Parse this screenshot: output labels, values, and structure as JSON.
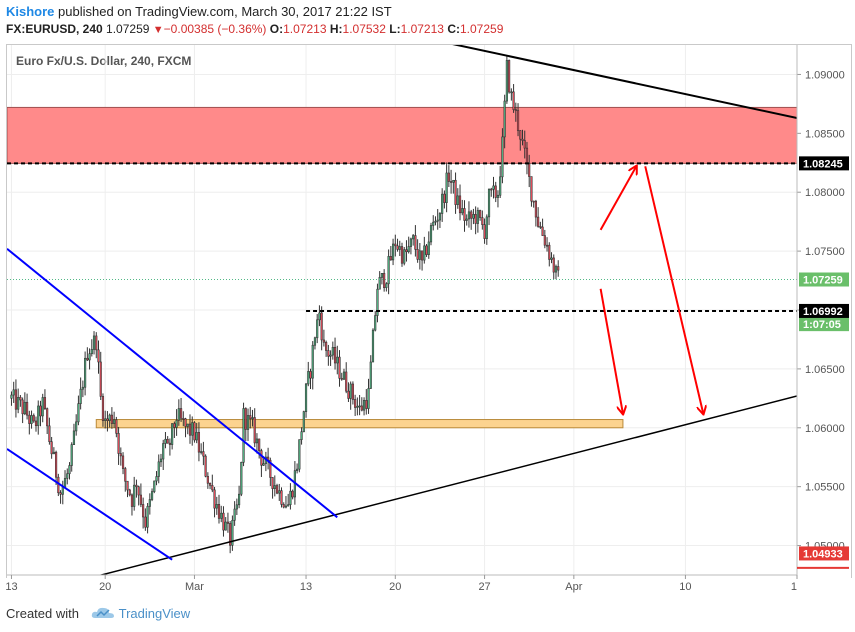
{
  "header": {
    "author": "Kishore",
    "published_text": "published on TradingView.com, March 30, 2017 21:22 IST"
  },
  "ohlc": {
    "symbol": "FX:EURUSD, 240",
    "price": "1.07259",
    "change_icon": "down-triangle-icon",
    "change": "−0.00385 (−0.36%)",
    "o_label": "O:",
    "o_value": "1.07213",
    "h_label": "H:",
    "h_value": "1.07532",
    "l_label": "L:",
    "l_value": "1.07213",
    "c_label": "C:",
    "c_value": "1.07259"
  },
  "footer": {
    "created_with": "Created with",
    "brand": "TradingView",
    "brand_icon": "tradingview-cloud-icon"
  },
  "chart_data": {
    "type": "candlestick",
    "title": "Euro Fx/U.S. Dollar, 240, FXCM",
    "ylim": [
      1.0475,
      1.0925
    ],
    "y_ticks": [
      "1.09000",
      "1.08500",
      "1.08000",
      "1.07500",
      "1.07000",
      "1.06500",
      "1.06000",
      "1.05500",
      "1.05000"
    ],
    "x_ticks": [
      {
        "label": "13",
        "x": 0
      },
      {
        "label": "20",
        "x": 21
      },
      {
        "label": "Mar",
        "x": 41
      },
      {
        "label": "13",
        "x": 66
      },
      {
        "label": "20",
        "x": 86
      },
      {
        "label": "27",
        "x": 106
      },
      {
        "label": "Apr",
        "x": 126
      },
      {
        "label": "10",
        "x": 151
      },
      {
        "label": "1",
        "x": 176
      }
    ],
    "x_range": [
      -1,
      176
    ],
    "last_bar_x": 114.5,
    "price_labels": [
      {
        "text": "1.08245",
        "value": 1.08245,
        "bg": "#000000",
        "fg": "#ffffff"
      },
      {
        "text": "1.07259",
        "value": 1.07259,
        "bg": "#6abf6a",
        "fg": "#ffffff"
      },
      {
        "text": "1:07:05",
        "value": 1.0688,
        "bg": "#6abf6a",
        "fg": "#ffffff"
      },
      {
        "text": "1.06992",
        "value": 1.06992,
        "bg": "#000000",
        "fg": "#ffffff"
      },
      {
        "text": "1.04933",
        "value": 1.04933,
        "bg": "#e53935",
        "fg": "#ffffff"
      }
    ],
    "colors": {
      "up": "#53b987",
      "down": "#eb4d5c",
      "wick": "#333333",
      "zone_red": "#ff8a8a",
      "zone_orange": "#fcd38f"
    },
    "path": [
      [
        0,
        1.0625
      ],
      [
        3,
        1.0615
      ],
      [
        5,
        1.06
      ],
      [
        7,
        1.062
      ],
      [
        9,
        1.058
      ],
      [
        11,
        1.0545
      ],
      [
        13,
        1.0565
      ],
      [
        15,
        1.0615
      ],
      [
        17,
        1.0665
      ],
      [
        19,
        1.0675
      ],
      [
        20,
        1.0625
      ],
      [
        21,
        1.0605
      ],
      [
        23,
        1.061
      ],
      [
        25,
        1.056
      ],
      [
        27,
        1.054
      ],
      [
        28,
        1.0555
      ],
      [
        30,
        1.052
      ],
      [
        32,
        1.055
      ],
      [
        34,
        1.0585
      ],
      [
        35,
        1.058
      ],
      [
        37,
        1.061
      ],
      [
        39,
        1.06
      ],
      [
        41,
        1.0595
      ],
      [
        43,
        1.057
      ],
      [
        45,
        1.0545
      ],
      [
        47,
        1.0525
      ],
      [
        49,
        1.0505
      ],
      [
        51,
        1.054
      ],
      [
        52,
        1.061
      ],
      [
        54,
        1.06
      ],
      [
        56,
        1.0575
      ],
      [
        58,
        1.056
      ],
      [
        60,
        1.0545
      ],
      [
        62,
        1.0535
      ],
      [
        63,
        1.055
      ],
      [
        64,
        1.057
      ],
      [
        65,
        1.06
      ],
      [
        66,
        1.063
      ],
      [
        67,
        1.065
      ],
      [
        68,
        1.068
      ],
      [
        69,
        1.0698
      ],
      [
        70,
        1.0668
      ],
      [
        72,
        1.066
      ],
      [
        74,
        1.0645
      ],
      [
        76,
        1.063
      ],
      [
        78,
        1.0615
      ],
      [
        80,
        1.0628
      ],
      [
        81,
        1.0675
      ],
      [
        82,
        1.072
      ],
      [
        84,
        1.073
      ],
      [
        86,
        1.0758
      ],
      [
        88,
        1.0745
      ],
      [
        90,
        1.0758
      ],
      [
        92,
        1.0738
      ],
      [
        94,
        1.0768
      ],
      [
        96,
        1.0785
      ],
      [
        98,
        1.0815
      ],
      [
        100,
        1.079
      ],
      [
        102,
        1.0775
      ],
      [
        104,
        1.078
      ],
      [
        106,
        1.0768
      ],
      [
        107,
        1.0795
      ],
      [
        109,
        1.08
      ],
      [
        110,
        1.084
      ],
      [
        111,
        1.0905
      ],
      [
        112,
        1.088
      ],
      [
        114,
        1.085
      ],
      [
        116,
        1.081
      ],
      [
        118,
        1.0775
      ],
      [
        120,
        1.0755
      ],
      [
        122,
        1.073
      ],
      [
        123,
        1.0722
      ]
    ],
    "zones": [
      {
        "name": "resistance-zone",
        "x0": -1,
        "x1": 176,
        "y0": 1.08245,
        "y1": 1.0872,
        "fill": "#ff8a8a",
        "stroke": "#a05050"
      },
      {
        "name": "support-zone",
        "x0": 19,
        "x1": 137,
        "y0": 1.06,
        "y1": 1.0607,
        "fill": "#fcd38f",
        "stroke": "#b98a3a"
      }
    ],
    "hlines": [
      {
        "name": "resistance-line",
        "y": 1.08245,
        "x0": -1,
        "x1": 176,
        "color": "#000000",
        "dash": "4,3",
        "width": 2
      },
      {
        "name": "pivot-line",
        "y": 1.06992,
        "x0": 66,
        "x1": 176,
        "color": "#000000",
        "dash": "4,3",
        "width": 2
      },
      {
        "name": "last-price-line",
        "y": 1.07259,
        "x0": -1,
        "x1": 176,
        "color": "#53b987",
        "dash": "1,2",
        "width": 1
      }
    ],
    "lines": [
      {
        "name": "descending-trendline",
        "x0": 90,
        "y0": 1.0933,
        "x1": 176,
        "y1": 1.0863,
        "color": "#000000",
        "width": 2
      },
      {
        "name": "ascending-trendline",
        "x0": 15,
        "y0": 1.047,
        "x1": 176,
        "y1": 1.0627,
        "color": "#000000",
        "width": 1.5
      },
      {
        "name": "channel-upper",
        "x0": -1,
        "y0": 1.0752,
        "x1": 73,
        "y1": 1.0524,
        "color": "#0000ff",
        "width": 2
      },
      {
        "name": "channel-lower",
        "x0": -1,
        "y0": 1.0582,
        "x1": 36,
        "y1": 1.0488,
        "color": "#0000ff",
        "width": 2
      }
    ],
    "arrows": [
      {
        "name": "up-arrow",
        "x0": 132,
        "y0": 1.0768,
        "x1": 140,
        "y1": 1.0822,
        "color": "#ff0000"
      },
      {
        "name": "down-arrow-short",
        "x0": 132,
        "y0": 1.0718,
        "x1": 137,
        "y1": 1.0612,
        "color": "#ff0000"
      },
      {
        "name": "down-arrow-long",
        "x0": 142,
        "y0": 1.0822,
        "x1": 155,
        "y1": 1.0612,
        "color": "#ff0000"
      }
    ]
  }
}
